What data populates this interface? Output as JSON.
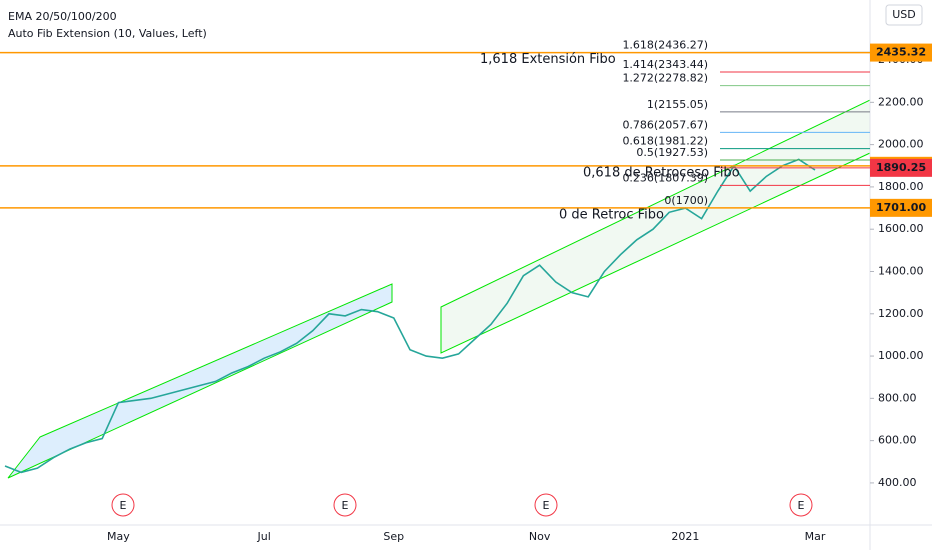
{
  "chart_data": {
    "type": "line",
    "indicators": [
      "EMA 20/50/100/200",
      "Auto Fib Extension (10, Values, Left)"
    ],
    "currency": "USD",
    "categories": [
      null,
      null,
      null,
      null,
      null,
      null,
      null,
      "May",
      null,
      null,
      null,
      null,
      null,
      null,
      null,
      null,
      "Jul",
      null,
      null,
      null,
      null,
      null,
      null,
      null,
      "Sep",
      null,
      null,
      null,
      null,
      null,
      null,
      null,
      null,
      "Nov",
      null,
      null,
      null,
      null,
      null,
      null,
      null,
      null,
      "2021",
      null,
      null,
      null,
      null,
      null,
      null,
      null,
      "Mar",
      null,
      null,
      null
    ],
    "values": [
      480,
      450,
      470,
      520,
      560,
      590,
      610,
      780,
      790,
      800,
      820,
      840,
      860,
      880,
      920,
      950,
      990,
      1020,
      1060,
      1120,
      1200,
      1190,
      1220,
      1210,
      1180,
      1030,
      1000,
      990,
      1010,
      1080,
      1150,
      1250,
      1380,
      1430,
      1350,
      1300,
      1280,
      1400,
      1480,
      1550,
      1600,
      1680,
      1700,
      1650,
      1780,
      1900,
      1780,
      1850,
      1900,
      1930,
      1880,
      null,
      null,
      null
    ],
    "color": "#26a69a",
    "ylim": [
      201,
      2684
    ],
    "yticks": [
      {
        "value": 400,
        "label": "400.00"
      },
      {
        "value": 600,
        "label": "600.00"
      },
      {
        "value": 800,
        "label": "800.00"
      },
      {
        "value": 1000,
        "label": "1000.00"
      },
      {
        "value": 1200,
        "label": "1200.00"
      },
      {
        "value": 1400,
        "label": "1400.00"
      },
      {
        "value": 1600,
        "label": "1600.00"
      },
      {
        "value": 1800,
        "label": "1800.00"
      },
      {
        "value": 2000,
        "label": "2000.00"
      },
      {
        "value": 2200,
        "label": "2200.00"
      },
      {
        "value": 2400,
        "label": "2400.00"
      }
    ],
    "fib_levels": [
      {
        "label": "1.618(2436.27)",
        "value": 2436.27,
        "color": "#2196f3"
      },
      {
        "label": "1.414(2343.44)",
        "value": 2343.44,
        "color": "#f23645"
      },
      {
        "label": "1.272(2278.82)",
        "value": 2278.82,
        "color": "#81c784"
      },
      {
        "label": "1(2155.05)",
        "value": 2155.05,
        "color": "#787b86"
      },
      {
        "label": "0.786(2057.67)",
        "value": 2057.67,
        "color": "#64b5f6"
      },
      {
        "label": "0.618(1981.22)",
        "value": 1981.22,
        "color": "#089981"
      },
      {
        "label": "0.5(1927.53)",
        "value": 1927.53,
        "color": "#4caf50"
      },
      {
        "label": "0.236(1807.39)",
        "value": 1807.39,
        "color": "#f23645"
      },
      {
        "label": "0(1700)",
        "value": 1700,
        "color": "#787b86"
      }
    ],
    "price_lines": [
      {
        "label": "2435.32",
        "value": 2435.32,
        "color": "#ff9800",
        "full": true
      },
      {
        "label": "1899.75",
        "value": 1899.75,
        "color": "#ff9800",
        "full": true
      },
      {
        "label": "1890.25",
        "value": 1890.25,
        "color": "#f23645",
        "full": false
      },
      {
        "label": "1701.00",
        "value": 1701.0,
        "color": "#ff9800",
        "full": true
      }
    ],
    "annotations": [
      {
        "text": "1,618 Extensión Fibo",
        "value": 2435.32
      },
      {
        "text": "0,618 de Retroceso Fibo",
        "value": 1899.75
      },
      {
        "text": "0 de Retroc Fibo",
        "value": 1701.0
      }
    ],
    "events": [
      "E",
      "E",
      "E",
      "E"
    ]
  }
}
